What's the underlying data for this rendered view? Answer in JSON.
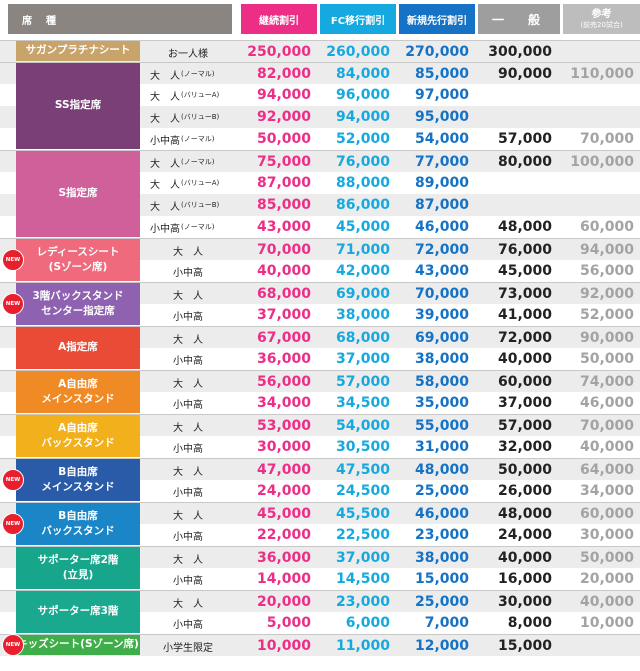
{
  "header": {
    "seat": "席　種",
    "col1": "継続割引",
    "col2": "FC移行割引",
    "col3": "新規先行割引",
    "col4": "一　般",
    "col5": "参考",
    "col5_sub": "(前売20試合)"
  },
  "new_label": "NEW",
  "colors": {
    "continuing_discount": "#ec2e87",
    "fc_discount": "#15a9df",
    "new_advance_discount": "#1572c4",
    "general_header": "#9e9e9e",
    "reference_header": "#bdbdbd"
  },
  "sections": [
    {
      "label": [
        "サガンプラチナシート"
      ],
      "color": "#c9a46a",
      "new": false,
      "rows": [
        {
          "sub": "お一人様",
          "paren": "",
          "c1": "250,000",
          "c2": "260,000",
          "c3": "270,000",
          "c4": "300,000",
          "c5": ""
        }
      ]
    },
    {
      "label": [
        "SS指定席"
      ],
      "color": "#7b3f78",
      "new": false,
      "rows": [
        {
          "sub": "大　人",
          "paren": "(ノーマル)",
          "c1": "82,000",
          "c2": "84,000",
          "c3": "85,000",
          "c4": "90,000",
          "c5": "110,000"
        },
        {
          "sub": "大　人",
          "paren": "(バリューA)",
          "c1": "94,000",
          "c2": "96,000",
          "c3": "97,000",
          "c4": "",
          "c5": ""
        },
        {
          "sub": "大　人",
          "paren": "(バリューB)",
          "c1": "92,000",
          "c2": "94,000",
          "c3": "95,000",
          "c4": "",
          "c5": ""
        },
        {
          "sub": "小中高",
          "paren": "(ノーマル)",
          "c1": "50,000",
          "c2": "52,000",
          "c3": "54,000",
          "c4": "57,000",
          "c5": "70,000"
        }
      ]
    },
    {
      "label": [
        "S指定席"
      ],
      "color": "#d0609a",
      "new": false,
      "rows": [
        {
          "sub": "大　人",
          "paren": "(ノーマル)",
          "c1": "75,000",
          "c2": "76,000",
          "c3": "77,000",
          "c4": "80,000",
          "c5": "100,000"
        },
        {
          "sub": "大　人",
          "paren": "(バリューA)",
          "c1": "87,000",
          "c2": "88,000",
          "c3": "89,000",
          "c4": "",
          "c5": ""
        },
        {
          "sub": "大　人",
          "paren": "(バリューB)",
          "c1": "85,000",
          "c2": "86,000",
          "c3": "87,000",
          "c4": "",
          "c5": ""
        },
        {
          "sub": "小中高",
          "paren": "(ノーマル)",
          "c1": "43,000",
          "c2": "45,000",
          "c3": "46,000",
          "c4": "48,000",
          "c5": "60,000"
        }
      ]
    },
    {
      "label": [
        "レディースシート",
        "(Sゾーン席)"
      ],
      "color": "#ee6a7c",
      "new": true,
      "rows": [
        {
          "sub": "大　人",
          "paren": "",
          "c1": "70,000",
          "c2": "71,000",
          "c3": "72,000",
          "c4": "76,000",
          "c5": "94,000"
        },
        {
          "sub": "小中高",
          "paren": "",
          "c1": "40,000",
          "c2": "42,000",
          "c3": "43,000",
          "c4": "45,000",
          "c5": "56,000"
        }
      ]
    },
    {
      "label": [
        "3階バックスタンド",
        "センター指定席"
      ],
      "color": "#8e62b0",
      "new": true,
      "rows": [
        {
          "sub": "大　人",
          "paren": "",
          "c1": "68,000",
          "c2": "69,000",
          "c3": "70,000",
          "c4": "73,000",
          "c5": "92,000"
        },
        {
          "sub": "小中高",
          "paren": "",
          "c1": "37,000",
          "c2": "38,000",
          "c3": "39,000",
          "c4": "41,000",
          "c5": "52,000"
        }
      ]
    },
    {
      "label": [
        "A指定席"
      ],
      "color": "#ea4b36",
      "new": false,
      "rows": [
        {
          "sub": "大　人",
          "paren": "",
          "c1": "67,000",
          "c2": "68,000",
          "c3": "69,000",
          "c4": "72,000",
          "c5": "90,000"
        },
        {
          "sub": "小中高",
          "paren": "",
          "c1": "36,000",
          "c2": "37,000",
          "c3": "38,000",
          "c4": "40,000",
          "c5": "50,000"
        }
      ]
    },
    {
      "label": [
        "A自由席",
        "メインスタンド"
      ],
      "color": "#f08a24",
      "new": false,
      "rows": [
        {
          "sub": "大　人",
          "paren": "",
          "c1": "56,000",
          "c2": "57,000",
          "c3": "58,000",
          "c4": "60,000",
          "c5": "74,000"
        },
        {
          "sub": "小中高",
          "paren": "",
          "c1": "34,000",
          "c2": "34,500",
          "c3": "35,000",
          "c4": "37,000",
          "c5": "46,000"
        }
      ]
    },
    {
      "label": [
        "A自由席",
        "バックスタンド"
      ],
      "color": "#f2b01c",
      "new": false,
      "rows": [
        {
          "sub": "大　人",
          "paren": "",
          "c1": "53,000",
          "c2": "54,000",
          "c3": "55,000",
          "c4": "57,000",
          "c5": "70,000"
        },
        {
          "sub": "小中高",
          "paren": "",
          "c1": "30,000",
          "c2": "30,500",
          "c3": "31,000",
          "c4": "32,000",
          "c5": "40,000"
        }
      ]
    },
    {
      "label": [
        "B自由席",
        "メインスタンド"
      ],
      "color": "#2a5ba8",
      "new": true,
      "rows": [
        {
          "sub": "大　人",
          "paren": "",
          "c1": "47,000",
          "c2": "47,500",
          "c3": "48,000",
          "c4": "50,000",
          "c5": "64,000"
        },
        {
          "sub": "小中高",
          "paren": "",
          "c1": "24,000",
          "c2": "24,500",
          "c3": "25,000",
          "c4": "26,000",
          "c5": "34,000"
        }
      ]
    },
    {
      "label": [
        "B自由席",
        "バックスタンド"
      ],
      "color": "#1a86c8",
      "new": true,
      "rows": [
        {
          "sub": "大　人",
          "paren": "",
          "c1": "45,000",
          "c2": "45,500",
          "c3": "46,000",
          "c4": "48,000",
          "c5": "60,000"
        },
        {
          "sub": "小中高",
          "paren": "",
          "c1": "22,000",
          "c2": "22,500",
          "c3": "23,000",
          "c4": "24,000",
          "c5": "30,000"
        }
      ]
    },
    {
      "label": [
        "サポーター席2階",
        "(立見)"
      ],
      "color": "#17a58c",
      "new": false,
      "rows": [
        {
          "sub": "大　人",
          "paren": "",
          "c1": "36,000",
          "c2": "37,000",
          "c3": "38,000",
          "c4": "40,000",
          "c5": "50,000"
        },
        {
          "sub": "小中高",
          "paren": "",
          "c1": "14,000",
          "c2": "14,500",
          "c3": "15,000",
          "c4": "16,000",
          "c5": "20,000"
        }
      ]
    },
    {
      "label": [
        "サポーター席3階"
      ],
      "color": "#1aa98e",
      "new": false,
      "rows": [
        {
          "sub": "大　人",
          "paren": "",
          "c1": "20,000",
          "c2": "23,000",
          "c3": "25,000",
          "c4": "30,000",
          "c5": "40,000"
        },
        {
          "sub": "小中高",
          "paren": "",
          "c1": "5,000",
          "c2": "6,000",
          "c3": "7,000",
          "c4": "8,000",
          "c5": "10,000"
        }
      ]
    },
    {
      "label": [
        "キッズシート(Sゾーン席)"
      ],
      "color": "#3fae4a",
      "new": true,
      "rows": [
        {
          "sub": "小学生限定",
          "paren": "",
          "c1": "10,000",
          "c2": "11,000",
          "c3": "12,000",
          "c4": "15,000",
          "c5": ""
        }
      ]
    }
  ]
}
